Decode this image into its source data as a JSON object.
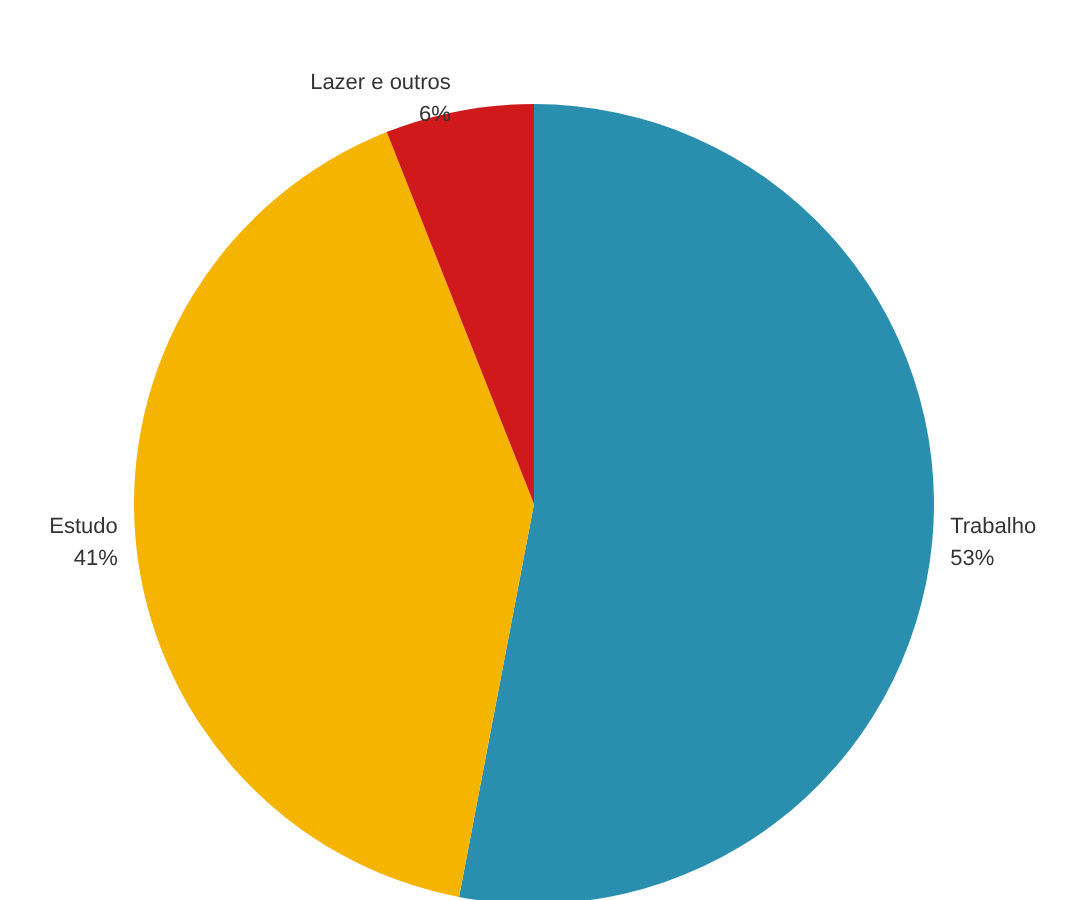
{
  "chart_data": {
    "type": "pie",
    "categories": [
      "Trabalho",
      "Estudo",
      "Lazer e outros"
    ],
    "values": [
      53,
      41,
      6
    ],
    "value_labels": [
      "53%",
      "41%",
      "6%"
    ],
    "colors": [
      "#2a8fae",
      "#f5b400",
      "#d0191b"
    ]
  }
}
